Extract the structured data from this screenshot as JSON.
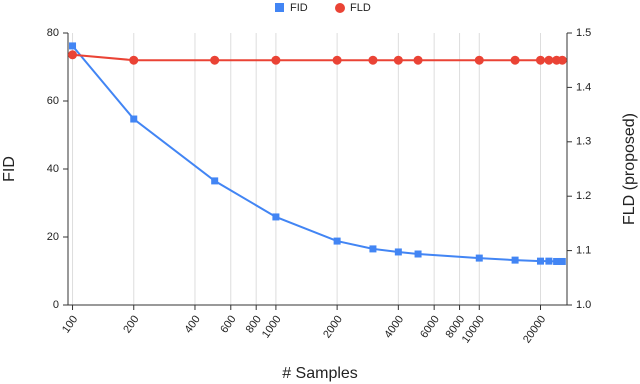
{
  "chart_data": {
    "type": "line",
    "x_label": "# Samples",
    "y_label": "FID",
    "y2_label": "FLD (proposed)",
    "x": [
      100,
      200,
      500,
      1000,
      2000,
      3000,
      4000,
      5000,
      10000,
      15000,
      20000,
      22000,
      24000,
      25600
    ],
    "series": [
      {
        "name": "FID",
        "color": "#4285f4",
        "marker": "square",
        "values": [
          76.2,
          54.7,
          36.5,
          25.9,
          18.8,
          16.5,
          15.6,
          15.0,
          13.8,
          13.2,
          12.9,
          12.9,
          12.8,
          12.8
        ]
      },
      {
        "name": "FLD",
        "color": "#ea4335",
        "marker": "circle",
        "axis": "y2",
        "values": [
          1.46,
          1.45,
          1.45,
          1.45,
          1.45,
          1.45,
          1.45,
          1.45,
          1.45,
          1.45,
          1.45,
          1.45,
          1.45,
          1.45
        ]
      }
    ],
    "xlog": true,
    "xlim": [
      95,
      27000
    ],
    "xticks": [
      100,
      200,
      400,
      600,
      800,
      1000,
      2000,
      4000,
      6000,
      8000,
      10000,
      20000
    ],
    "ylim": [
      0,
      80
    ],
    "yticks": [
      0,
      20,
      40,
      60,
      80
    ],
    "y2lim": [
      1,
      1.5
    ],
    "y2ticks": [
      {
        "value": 1,
        "label": "1.0"
      },
      1.1,
      1.2,
      1.3,
      1.4,
      {
        "value": 1.5,
        "label": "1.5"
      }
    ],
    "grid": "x",
    "legend": "top"
  }
}
